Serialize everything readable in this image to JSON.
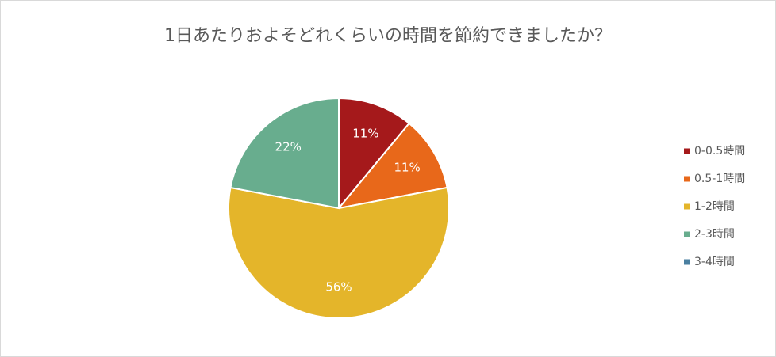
{
  "chart_data": {
    "type": "pie",
    "title": "1日あたりおよそどれくらいの時間を節約できましたか？",
    "categories": [
      "0-0.5時間",
      "0.5-1時間",
      "1-2時間",
      "2-3時間",
      "3-4時間"
    ],
    "values": [
      11,
      11,
      56,
      22,
      0
    ],
    "value_labels": [
      "11%",
      "11%",
      "56%",
      "22%",
      null
    ],
    "colors": [
      "#a5191b",
      "#e8681a",
      "#e4b52a",
      "#68ad8e",
      "#4a7fa0"
    ],
    "legend": "right"
  }
}
